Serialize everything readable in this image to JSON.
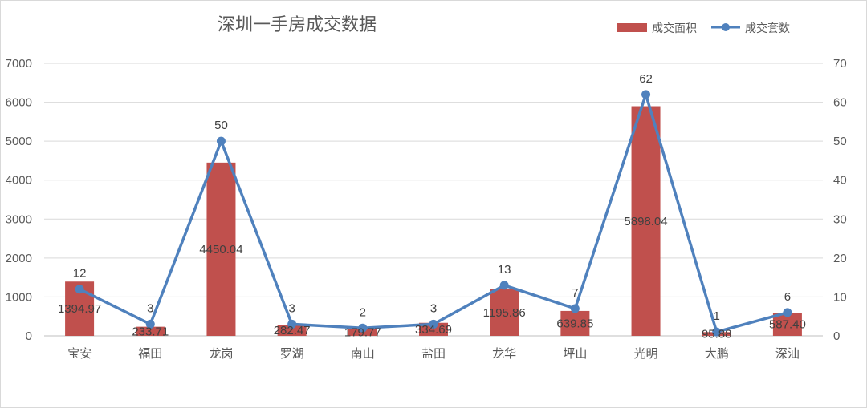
{
  "chart_data": {
    "type": "bar",
    "title": "深圳一手房成交数据",
    "categories": [
      "宝安",
      "福田",
      "龙岗",
      "罗湖",
      "南山",
      "盐田",
      "龙华",
      "坪山",
      "光明",
      "大鹏",
      "深汕"
    ],
    "series": [
      {
        "name": "成交面积",
        "type": "bar",
        "axis": "left",
        "color": "#C0504D",
        "values": [
          1394.97,
          233.71,
          4450.04,
          282.47,
          179.77,
          334.69,
          1195.86,
          639.85,
          5898.04,
          95.88,
          587.4
        ],
        "labels": [
          "1394.97",
          "233.71",
          "4450.04",
          "282.47",
          "179.77",
          "334.69",
          "1195.86",
          "639.85",
          "5898.04",
          "95.88",
          "587.40"
        ]
      },
      {
        "name": "成交套数",
        "type": "line",
        "axis": "right",
        "color": "#4F81BD",
        "values": [
          12,
          3,
          50,
          3,
          2,
          3,
          13,
          7,
          62,
          1,
          6
        ],
        "labels": [
          "12",
          "3",
          "50",
          "3",
          "2",
          "3",
          "13",
          "7",
          "62",
          "1",
          "6"
        ]
      }
    ],
    "ylim_left": [
      0,
      7000
    ],
    "yticks_left": [
      "0",
      "1000",
      "2000",
      "3000",
      "4000",
      "5000",
      "6000",
      "7000"
    ],
    "ylim_right": [
      0,
      70
    ],
    "yticks_right": [
      "0",
      "10",
      "20",
      "30",
      "40",
      "50",
      "60",
      "70"
    ],
    "grid": true,
    "legend_position": "top-right"
  }
}
